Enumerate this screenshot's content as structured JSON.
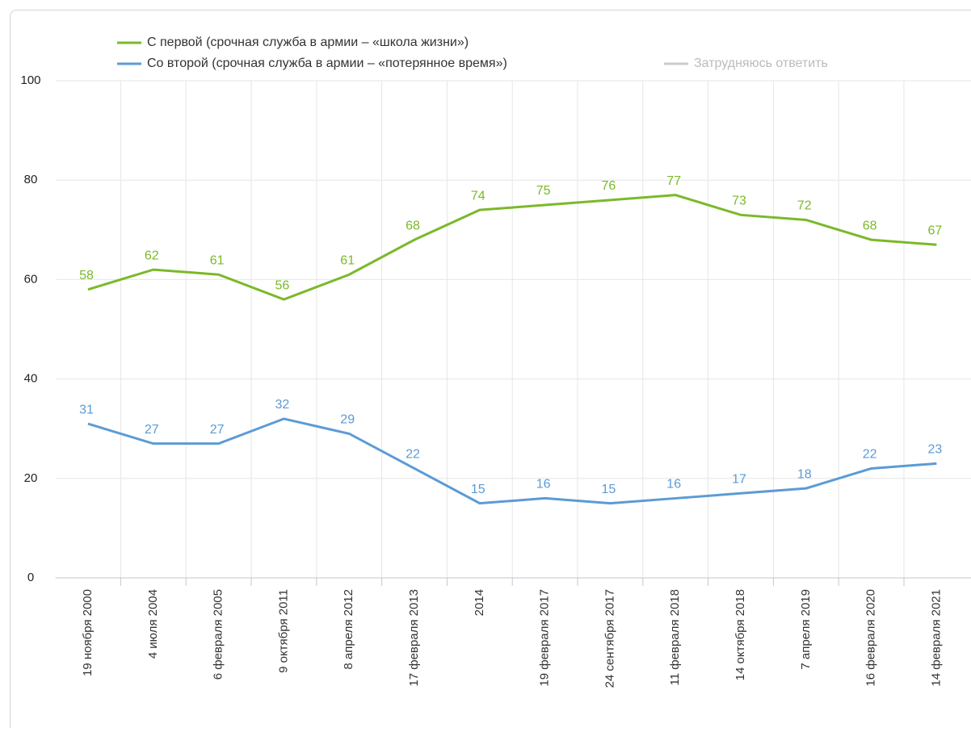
{
  "chart_data": {
    "type": "line",
    "categories": [
      "19 ноября 2000",
      "4 июля 2004",
      "6 февраля 2005",
      "9 октября 2011",
      "8 апреля 2012",
      "17 февраля 2013",
      "2014",
      "19 февраля 2017",
      "24 сентября 2017",
      "11 февраля 2018",
      "14 октября 2018",
      "7 апреля 2019",
      "16 февраля 2020",
      "14 февраля 2021"
    ],
    "series": [
      {
        "name": "С первой (срочная служба в армии – «школа жизни»)",
        "color": "#7ab929",
        "values": [
          58,
          62,
          61,
          56,
          61,
          68,
          74,
          75,
          76,
          77,
          73,
          72,
          68,
          67
        ]
      },
      {
        "name": "Со второй (срочная служба в армии – «потерянное время»)",
        "color": "#5b9bd5",
        "values": [
          31,
          27,
          27,
          32,
          29,
          22,
          15,
          16,
          15,
          16,
          17,
          18,
          22,
          23
        ]
      },
      {
        "name": "Затрудняюсь ответить",
        "color": "#cccccc",
        "visible": false
      }
    ],
    "ylim": [
      0,
      100
    ],
    "yticks": [
      0,
      20,
      40,
      60,
      80,
      100
    ],
    "grid": true,
    "data_labels": true
  }
}
